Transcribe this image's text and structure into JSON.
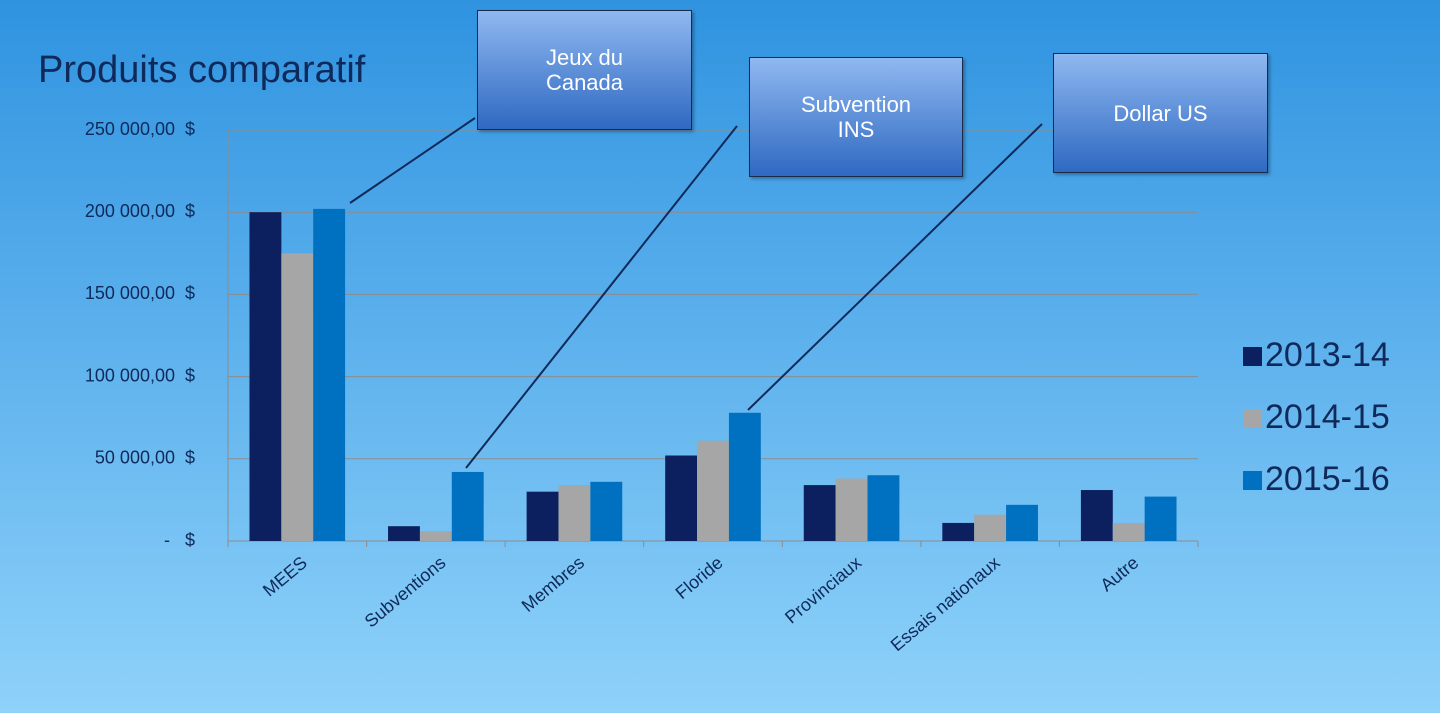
{
  "chart_data": {
    "type": "bar",
    "title": "Produits comparatif",
    "categories": [
      "MEES",
      "Subventions",
      "Membres",
      "Floride",
      "Provinciaux",
      "Essais nationaux",
      "Autre"
    ],
    "series": [
      {
        "name": "2013-14",
        "color": "#0c1f5e",
        "values": [
          200000,
          9000,
          30000,
          52000,
          34000,
          11000,
          31000
        ]
      },
      {
        "name": "2014-15",
        "color": "#a6a6a6",
        "values": [
          175000,
          6000,
          34000,
          61000,
          38000,
          16000,
          11000
        ]
      },
      {
        "name": "2015-16",
        "color": "#0070c0",
        "values": [
          202000,
          42000,
          36000,
          78000,
          40000,
          22000,
          27000
        ]
      }
    ],
    "ylim": [
      0,
      250000
    ],
    "yticks": [
      {
        "value": 0,
        "label": "-   $"
      },
      {
        "value": 50000,
        "label": "50 000,00  $"
      },
      {
        "value": 100000,
        "label": "100 000,00  $"
      },
      {
        "value": 150000,
        "label": "150 000,00  $"
      },
      {
        "value": 200000,
        "label": "200 000,00  $"
      },
      {
        "value": 250000,
        "label": "250 000,00  $"
      }
    ],
    "grid": true,
    "legend": "right",
    "annotations": [
      {
        "text": "Jeux du Canada"
      },
      {
        "text": "Subvention INS"
      },
      {
        "text": "Dollar US"
      }
    ]
  }
}
